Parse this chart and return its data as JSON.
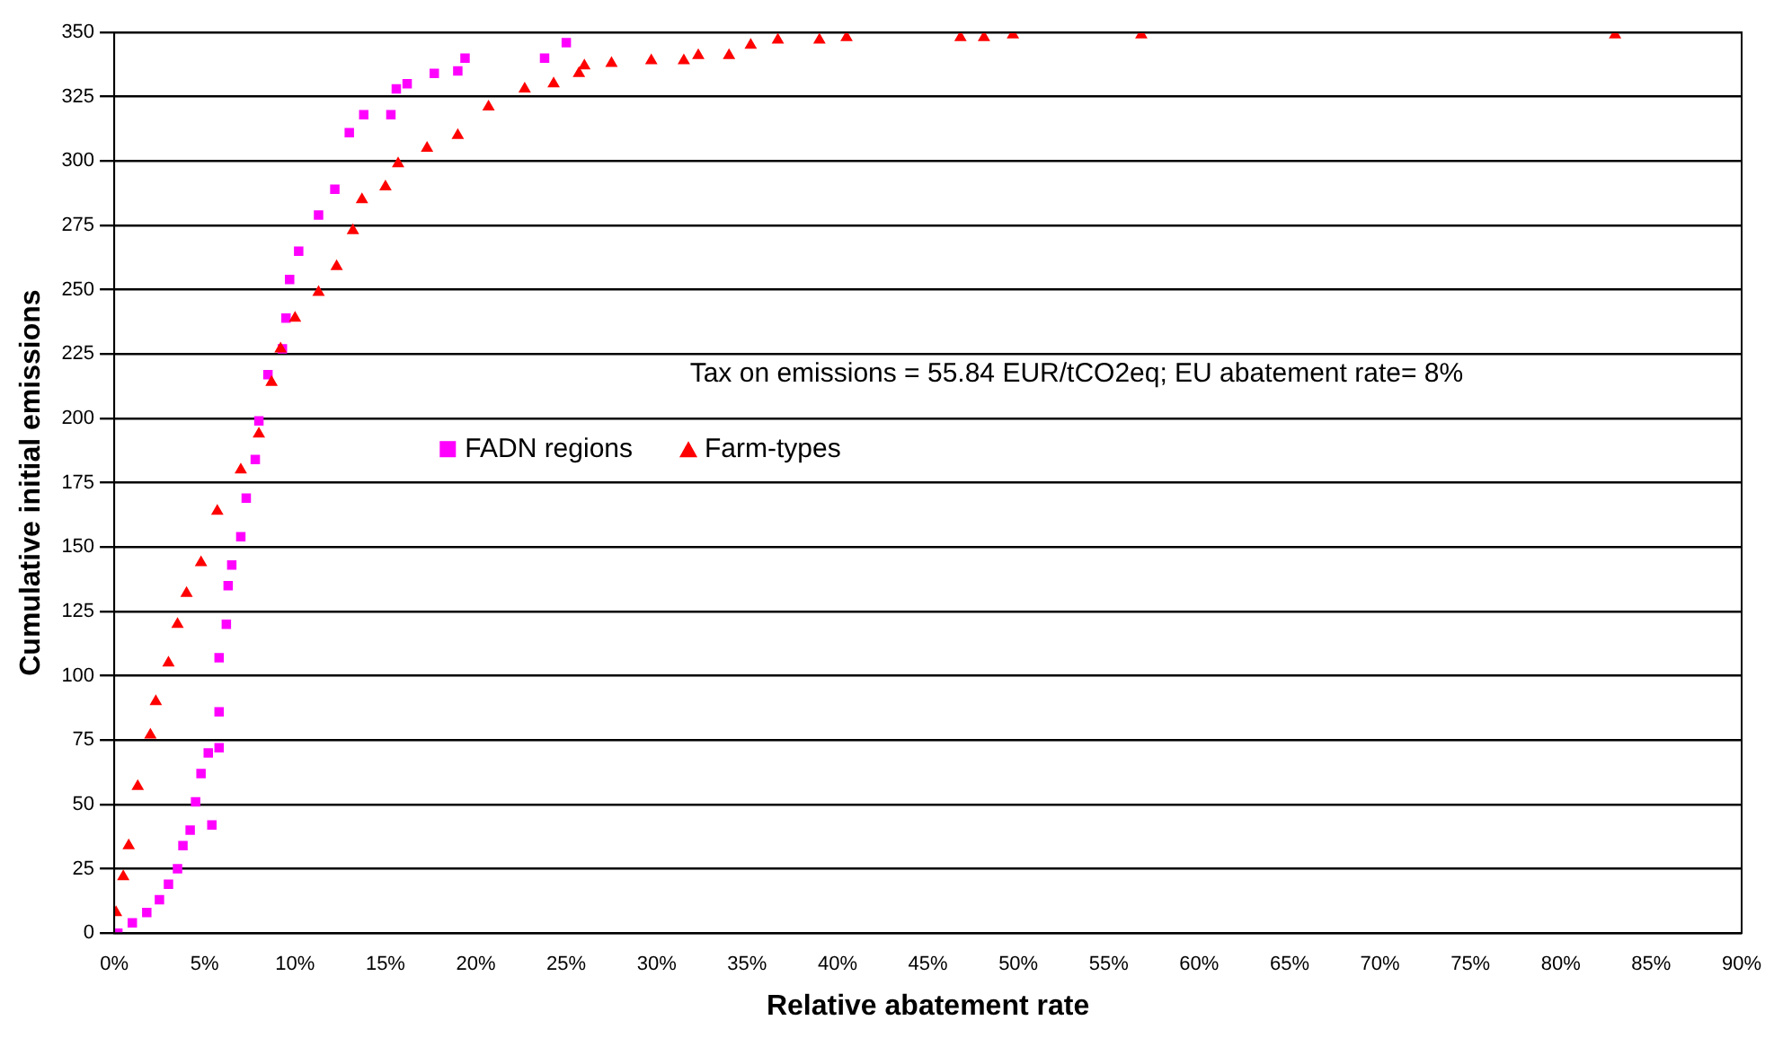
{
  "chart_data": {
    "type": "scatter",
    "xlabel": "Relative abatement rate",
    "ylabel": "Cumulative initial emissions",
    "xlim": [
      0,
      90
    ],
    "xticks": [
      {
        "value": 0,
        "label": "0%"
      },
      {
        "value": 5,
        "label": "5%"
      },
      {
        "value": 10,
        "label": "10%"
      },
      {
        "value": 15,
        "label": "15%"
      },
      {
        "value": 20,
        "label": "20%"
      },
      {
        "value": 25,
        "label": "25%"
      },
      {
        "value": 30,
        "label": "30%"
      },
      {
        "value": 35,
        "label": "35%"
      },
      {
        "value": 40,
        "label": "40%"
      },
      {
        "value": 45,
        "label": "45%"
      },
      {
        "value": 50,
        "label": "50%"
      },
      {
        "value": 55,
        "label": "55%"
      },
      {
        "value": 60,
        "label": "60%"
      },
      {
        "value": 65,
        "label": "65%"
      },
      {
        "value": 70,
        "label": "70%"
      },
      {
        "value": 75,
        "label": "75%"
      },
      {
        "value": 80,
        "label": "80%"
      },
      {
        "value": 85,
        "label": "85%"
      },
      {
        "value": 90,
        "label": "90%"
      }
    ],
    "ylim": [
      0,
      350
    ],
    "yticks": [
      0,
      25,
      50,
      75,
      100,
      125,
      150,
      175,
      200,
      225,
      250,
      275,
      300,
      325,
      350
    ],
    "grid": "y",
    "legend": "center",
    "annotations": [
      "Tax on emissions = 55.84 EUR/tCO2eq; EU abatement rate= 8%"
    ],
    "series": [
      {
        "name": "FADN regions",
        "color": "#ff00ff",
        "marker": "square",
        "x": [
          0.2,
          1,
          1.8,
          2.5,
          3,
          3.5,
          3.8,
          4.2,
          4.5,
          4.8,
          5.2,
          5.4,
          5.8,
          5.8,
          5.8,
          6.2,
          6.3,
          6.5,
          7,
          7.3,
          7.8,
          8,
          8.5,
          9.3,
          9.5,
          9.7,
          10.2,
          11.3,
          12.2,
          13,
          13.8,
          15.3,
          15.6,
          16.2,
          17.7,
          19,
          19.4,
          23.8,
          25
        ],
        "values": [
          0,
          4,
          8,
          13,
          19,
          25,
          34,
          40,
          51,
          62,
          70,
          42,
          72,
          86,
          107,
          120,
          135,
          143,
          154,
          169,
          184,
          199,
          217,
          227,
          239,
          254,
          265,
          279,
          289,
          311,
          318,
          318,
          328,
          330,
          334,
          335,
          340,
          340,
          346
        ]
      },
      {
        "name": "Farm-types",
        "color": "#ff0000",
        "marker": "triangle",
        "x": [
          0.1,
          0.5,
          0.8,
          1.3,
          2,
          2.3,
          3,
          3.5,
          4,
          4.8,
          5.7,
          7,
          8,
          8.7,
          9.2,
          10,
          11.3,
          12.3,
          13.2,
          13.7,
          15,
          15.7,
          17.3,
          19,
          20.7,
          22.7,
          24.3,
          25.7,
          26,
          27.5,
          29.7,
          31.5,
          32.3,
          34,
          35.2,
          36.7,
          39,
          40.5,
          46.8,
          48.1,
          49.7,
          56.8,
          83
        ],
        "values": [
          8,
          22,
          34,
          57,
          77,
          90,
          105,
          120,
          132,
          144,
          164,
          180,
          194,
          214,
          227,
          239,
          249,
          259,
          273,
          285,
          290,
          299,
          305,
          310,
          321,
          328,
          330,
          334,
          337,
          338,
          339,
          339,
          341,
          341,
          345,
          347,
          347,
          348,
          348,
          348,
          349,
          349,
          349
        ]
      }
    ]
  }
}
